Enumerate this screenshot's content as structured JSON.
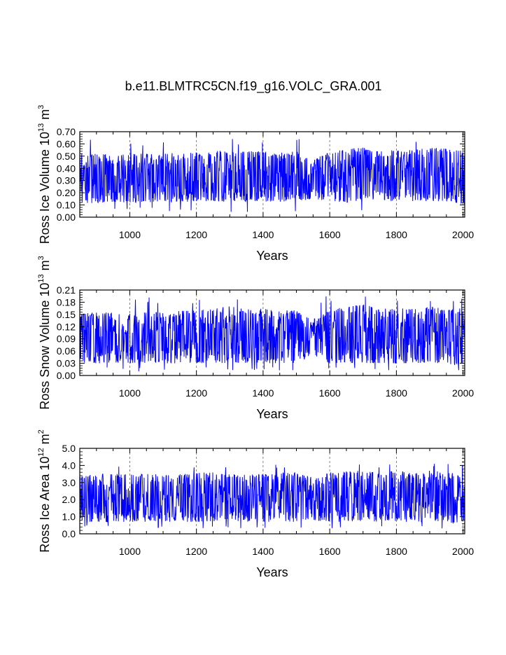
{
  "title": "b.e11.BLMTRC5CN.f19_g16.VOLC_GRA.001",
  "line_color": "#0000ff",
  "chart_data": [
    {
      "type": "line",
      "title": "b.e11.BLMTRC5CN.f19_g16.VOLC_GRA.001",
      "xlabel": "Years",
      "ylabel_main": "Ross Ice Volume 10",
      "ylabel_exp1": "13",
      "ylabel_mid": " m",
      "ylabel_exp2": "3",
      "xlim": [
        850,
        2005
      ],
      "ylim": [
        0.0,
        0.7
      ],
      "xticks": [
        1000,
        1200,
        1400,
        1600,
        1800,
        2000
      ],
      "xtick_labels": [
        "1000",
        "1200",
        "1400",
        "1600",
        "1800",
        "2000"
      ],
      "yticks": [
        0.0,
        0.1,
        0.2,
        0.3,
        0.4,
        0.5,
        0.6,
        0.7
      ],
      "ytick_labels": [
        "0.00",
        "0.10",
        "0.20",
        "0.30",
        "0.40",
        "0.50",
        "0.60",
        "0.70"
      ],
      "grid": "vertical dashed at major x ticks",
      "series": [
        {
          "name": "Ross Ice Volume",
          "x_start": 850,
          "x_end": 2005,
          "x": [
            850,
            900,
            950,
            1000,
            1050,
            1100,
            1150,
            1200,
            1250,
            1300,
            1350,
            1400,
            1450,
            1500,
            1550,
            1600,
            1650,
            1700,
            1750,
            1800,
            1850,
            1900,
            1950,
            2005
          ],
          "typical_low": [
            0.12,
            0.11,
            0.12,
            0.12,
            0.12,
            0.12,
            0.12,
            0.13,
            0.13,
            0.13,
            0.13,
            0.13,
            0.12,
            0.13,
            0.15,
            0.13,
            0.12,
            0.13,
            0.13,
            0.13,
            0.13,
            0.13,
            0.13,
            0.1
          ],
          "typical_high": [
            0.52,
            0.52,
            0.51,
            0.52,
            0.52,
            0.52,
            0.53,
            0.53,
            0.54,
            0.55,
            0.54,
            0.54,
            0.53,
            0.54,
            0.48,
            0.53,
            0.56,
            0.57,
            0.55,
            0.55,
            0.55,
            0.57,
            0.56,
            0.54
          ],
          "max": 0.64,
          "min": 0.04
        }
      ]
    },
    {
      "type": "line",
      "xlabel": "Years",
      "ylabel_main": "Ross Snow Volume 10",
      "ylabel_exp1": "13",
      "ylabel_mid": " m",
      "ylabel_exp2": "3",
      "xlim": [
        850,
        2005
      ],
      "ylim": [
        0.0,
        0.21
      ],
      "xticks": [
        1000,
        1200,
        1400,
        1600,
        1800,
        2000
      ],
      "xtick_labels": [
        "1000",
        "1200",
        "1400",
        "1600",
        "1800",
        "2000"
      ],
      "yticks": [
        0.0,
        0.03,
        0.06,
        0.09,
        0.12,
        0.15,
        0.18,
        0.21
      ],
      "ytick_labels": [
        "0.00",
        "0.03",
        "0.06",
        "0.09",
        "0.12",
        "0.15",
        "0.18",
        "0.21"
      ],
      "grid": "vertical dashed at major x ticks",
      "series": [
        {
          "name": "Ross Snow Volume",
          "x_start": 850,
          "x_end": 2005,
          "x": [
            850,
            900,
            950,
            1000,
            1050,
            1100,
            1150,
            1200,
            1250,
            1300,
            1350,
            1400,
            1450,
            1500,
            1550,
            1600,
            1650,
            1700,
            1750,
            1800,
            1850,
            1900,
            1950,
            2005
          ],
          "typical_low": [
            0.03,
            0.03,
            0.03,
            0.03,
            0.03,
            0.03,
            0.03,
            0.03,
            0.03,
            0.03,
            0.03,
            0.03,
            0.03,
            0.03,
            0.05,
            0.03,
            0.03,
            0.03,
            0.03,
            0.03,
            0.03,
            0.03,
            0.03,
            0.02
          ],
          "typical_high": [
            0.155,
            0.155,
            0.155,
            0.155,
            0.155,
            0.155,
            0.16,
            0.16,
            0.165,
            0.17,
            0.165,
            0.165,
            0.16,
            0.16,
            0.14,
            0.16,
            0.17,
            0.175,
            0.165,
            0.165,
            0.165,
            0.17,
            0.165,
            0.165
          ],
          "max": 0.195,
          "min": 0.01
        }
      ]
    },
    {
      "type": "line",
      "xlabel": "Years",
      "ylabel_main": "Ross Ice Area 10",
      "ylabel_exp1": "12",
      "ylabel_mid": " m",
      "ylabel_exp2": "2",
      "xlim": [
        850,
        2005
      ],
      "ylim": [
        0.0,
        5.0
      ],
      "xticks": [
        1000,
        1200,
        1400,
        1600,
        1800,
        2000
      ],
      "xtick_labels": [
        "1000",
        "1200",
        "1400",
        "1600",
        "1800",
        "2000"
      ],
      "yticks": [
        0.0,
        1.0,
        2.0,
        3.0,
        4.0,
        5.0
      ],
      "ytick_labels": [
        "0.0",
        "1.0",
        "2.0",
        "3.0",
        "4.0",
        "5.0"
      ],
      "grid": "vertical dashed at major x ticks",
      "series": [
        {
          "name": "Ross Ice Area",
          "x_start": 850,
          "x_end": 2005,
          "x": [
            850,
            900,
            950,
            1000,
            1050,
            1100,
            1150,
            1200,
            1250,
            1300,
            1350,
            1400,
            1450,
            1500,
            1550,
            1600,
            1650,
            1700,
            1750,
            1800,
            1850,
            1900,
            1950,
            2005
          ],
          "typical_low": [
            0.7,
            0.7,
            0.7,
            0.7,
            0.7,
            0.7,
            0.7,
            0.7,
            0.7,
            0.7,
            0.7,
            0.7,
            0.7,
            0.7,
            0.8,
            0.7,
            0.7,
            0.7,
            0.7,
            0.7,
            0.7,
            0.7,
            0.7,
            0.5
          ],
          "typical_high": [
            3.4,
            3.5,
            3.5,
            3.5,
            3.5,
            3.5,
            3.5,
            3.6,
            3.6,
            3.6,
            3.5,
            3.5,
            3.6,
            3.6,
            3.3,
            3.6,
            3.7,
            3.7,
            3.6,
            3.7,
            3.6,
            3.7,
            3.6,
            3.5
          ],
          "max": 4.1,
          "min": 0.3
        }
      ]
    }
  ]
}
